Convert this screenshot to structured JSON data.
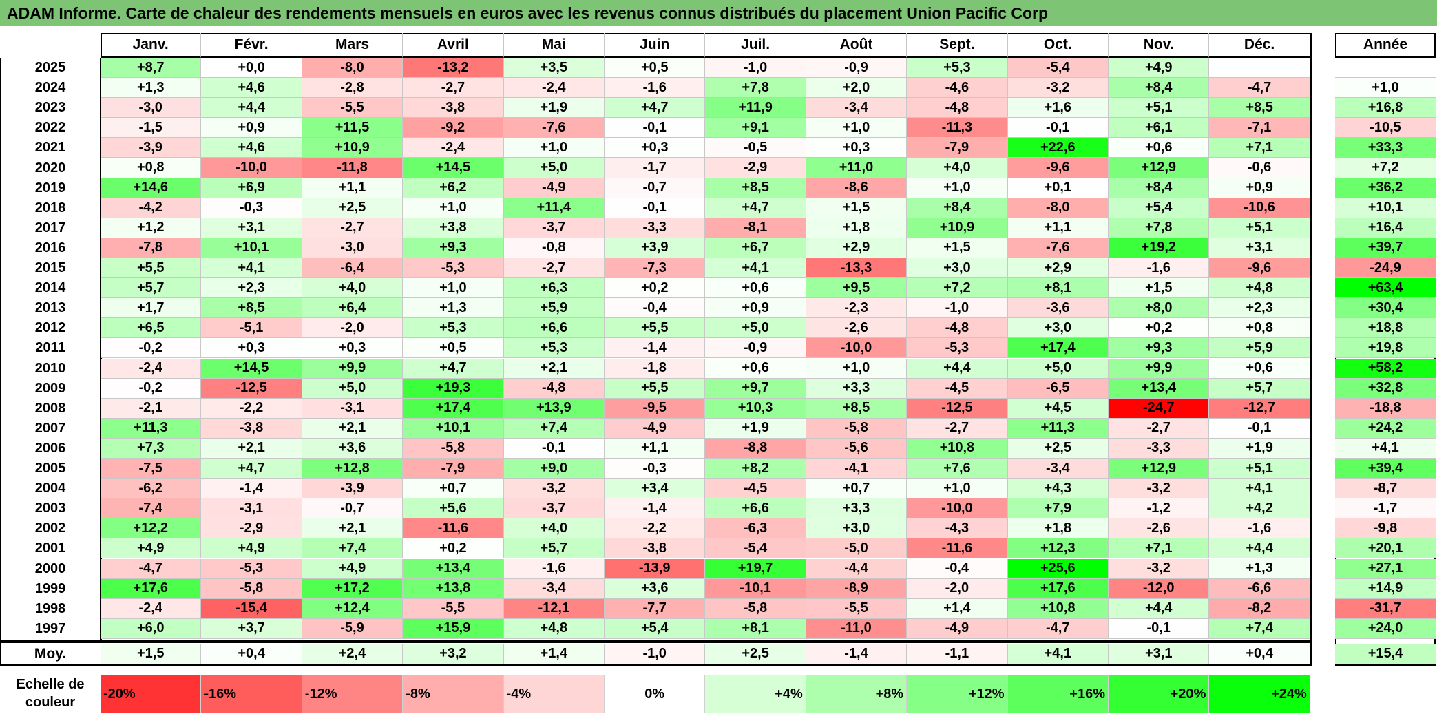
{
  "title": "ADAM Informe. Carte de chaleur des rendements mensuels en euros avec les revenus connus distribués du placement Union Pacific Corp",
  "chart_data": {
    "type": "heatmap",
    "title": "ADAM Informe. Carte de chaleur des rendements mensuels en euros avec les revenus connus distribués du placement Union Pacific Corp",
    "columns": [
      "Janv.",
      "Févr.",
      "Mars",
      "Avril",
      "Mai",
      "Juin",
      "Juil.",
      "Août",
      "Sept.",
      "Oct.",
      "Nov.",
      "Déc."
    ],
    "year_column_label": "Année",
    "rows": [
      {
        "year": "2025",
        "months": [
          "+8,7",
          "+0,0",
          "-8,0",
          "-13,2",
          "+3,5",
          "+0,5",
          "-1,0",
          "-0,9",
          "+5,3",
          "-5,4",
          "+4,9",
          ""
        ],
        "annual": ""
      },
      {
        "year": "2024",
        "months": [
          "+1,3",
          "+4,6",
          "-2,8",
          "-2,7",
          "-2,4",
          "-1,6",
          "+7,8",
          "+2,0",
          "-4,6",
          "-3,2",
          "+8,4",
          "-4,7"
        ],
        "annual": "+1,0"
      },
      {
        "year": "2023",
        "months": [
          "-3,0",
          "+4,4",
          "-5,5",
          "-3,8",
          "+1,9",
          "+4,7",
          "+11,9",
          "-3,4",
          "-4,8",
          "+1,6",
          "+5,1",
          "+8,5"
        ],
        "annual": "+16,8"
      },
      {
        "year": "2022",
        "months": [
          "-1,5",
          "+0,9",
          "+11,5",
          "-9,2",
          "-7,6",
          "-0,1",
          "+9,1",
          "+1,0",
          "-11,3",
          "-0,1",
          "+6,1",
          "-7,1"
        ],
        "annual": "-10,5"
      },
      {
        "year": "2021",
        "months": [
          "-3,9",
          "+4,6",
          "+10,9",
          "-2,4",
          "+1,0",
          "+0,3",
          "-0,5",
          "+0,3",
          "-7,9",
          "+22,6",
          "+0,6",
          "+7,1"
        ],
        "annual": "+33,3"
      },
      {
        "year": "2020",
        "months": [
          "+0,8",
          "-10,0",
          "-11,8",
          "+14,5",
          "+5,0",
          "-1,7",
          "-2,9",
          "+11,0",
          "+4,0",
          "-9,6",
          "+12,9",
          "-0,6"
        ],
        "annual": "+7,2"
      },
      {
        "year": "2019",
        "months": [
          "+14,6",
          "+6,9",
          "+1,1",
          "+6,2",
          "-4,9",
          "-0,7",
          "+8,5",
          "-8,6",
          "+1,0",
          "+0,1",
          "+8,4",
          "+0,9"
        ],
        "annual": "+36,2"
      },
      {
        "year": "2018",
        "months": [
          "-4,2",
          "-0,3",
          "+2,5",
          "+1,0",
          "+11,4",
          "-0,1",
          "+4,7",
          "+1,5",
          "+8,4",
          "-8,0",
          "+5,4",
          "-10,6"
        ],
        "annual": "+10,1"
      },
      {
        "year": "2017",
        "months": [
          "+1,2",
          "+3,1",
          "-2,7",
          "+3,8",
          "-3,7",
          "-3,3",
          "-8,1",
          "+1,8",
          "+10,9",
          "+1,1",
          "+7,8",
          "+5,1"
        ],
        "annual": "+16,4"
      },
      {
        "year": "2016",
        "months": [
          "-7,8",
          "+10,1",
          "-3,0",
          "+9,3",
          "-0,8",
          "+3,9",
          "+6,7",
          "+2,9",
          "+1,5",
          "-7,6",
          "+19,2",
          "+3,1"
        ],
        "annual": "+39,7"
      },
      {
        "year": "2015",
        "months": [
          "+5,5",
          "+4,1",
          "-6,4",
          "-5,3",
          "-2,7",
          "-7,3",
          "+4,1",
          "-13,3",
          "+3,0",
          "+2,9",
          "-1,6",
          "-9,6"
        ],
        "annual": "-24,9"
      },
      {
        "year": "2014",
        "months": [
          "+5,7",
          "+2,3",
          "+4,0",
          "+1,0",
          "+6,3",
          "+0,2",
          "+0,6",
          "+9,5",
          "+7,2",
          "+8,1",
          "+1,5",
          "+4,8"
        ],
        "annual": "+63,4"
      },
      {
        "year": "2013",
        "months": [
          "+1,7",
          "+8,5",
          "+6,4",
          "+1,3",
          "+5,9",
          "-0,4",
          "+0,9",
          "-2,3",
          "-1,0",
          "-3,6",
          "+8,0",
          "+2,3"
        ],
        "annual": "+30,4"
      },
      {
        "year": "2012",
        "months": [
          "+6,5",
          "-5,1",
          "-2,0",
          "+5,3",
          "+6,6",
          "+5,5",
          "+5,0",
          "-2,6",
          "-4,8",
          "+3,0",
          "+0,2",
          "+0,8"
        ],
        "annual": "+18,8"
      },
      {
        "year": "2011",
        "months": [
          "-0,2",
          "+0,3",
          "+0,3",
          "+0,5",
          "+5,3",
          "-1,4",
          "-0,9",
          "-10,0",
          "-5,3",
          "+17,4",
          "+9,3",
          "+5,9"
        ],
        "annual": "+19,8"
      },
      {
        "year": "2010",
        "months": [
          "-2,4",
          "+14,5",
          "+9,9",
          "+4,7",
          "+2,1",
          "-1,8",
          "+0,6",
          "+1,0",
          "+4,4",
          "+5,0",
          "+9,9",
          "+0,6"
        ],
        "annual": "+58,2"
      },
      {
        "year": "2009",
        "months": [
          "-0,2",
          "-12,5",
          "+5,0",
          "+19,3",
          "-4,8",
          "+5,5",
          "+9,7",
          "+3,3",
          "-4,5",
          "-6,5",
          "+13,4",
          "+5,7"
        ],
        "annual": "+32,8"
      },
      {
        "year": "2008",
        "months": [
          "-2,1",
          "-2,2",
          "-3,1",
          "+17,4",
          "+13,9",
          "-9,5",
          "+10,3",
          "+8,5",
          "-12,5",
          "+4,5",
          "-24,7",
          "-12,7"
        ],
        "annual": "-18,8"
      },
      {
        "year": "2007",
        "months": [
          "+11,3",
          "-3,8",
          "+2,1",
          "+10,1",
          "+7,4",
          "-4,9",
          "+1,9",
          "-5,8",
          "-2,7",
          "+11,3",
          "-2,7",
          "-0,1"
        ],
        "annual": "+24,2"
      },
      {
        "year": "2006",
        "months": [
          "+7,3",
          "+2,1",
          "+3,6",
          "-5,8",
          "-0,1",
          "+1,1",
          "-8,8",
          "-5,6",
          "+10,8",
          "+2,5",
          "-3,3",
          "+1,9"
        ],
        "annual": "+4,1"
      },
      {
        "year": "2005",
        "months": [
          "-7,5",
          "+4,7",
          "+12,8",
          "-7,9",
          "+9,0",
          "-0,3",
          "+8,2",
          "-4,1",
          "+7,6",
          "-3,4",
          "+12,9",
          "+5,1"
        ],
        "annual": "+39,4"
      },
      {
        "year": "2004",
        "months": [
          "-6,2",
          "-1,4",
          "-3,9",
          "+0,7",
          "-3,2",
          "+3,4",
          "-4,5",
          "+0,7",
          "+1,0",
          "+4,3",
          "-3,2",
          "+4,1"
        ],
        "annual": "-8,7"
      },
      {
        "year": "2003",
        "months": [
          "-7,4",
          "-3,1",
          "-0,7",
          "+5,6",
          "-3,7",
          "-1,4",
          "+6,6",
          "+3,3",
          "-10,0",
          "+7,9",
          "-1,2",
          "+4,2"
        ],
        "annual": "-1,7"
      },
      {
        "year": "2002",
        "months": [
          "+12,2",
          "-2,9",
          "+2,1",
          "-11,6",
          "+4,0",
          "-2,2",
          "-6,3",
          "+3,0",
          "-4,3",
          "+1,8",
          "-2,6",
          "-1,6"
        ],
        "annual": "-9,8"
      },
      {
        "year": "2001",
        "months": [
          "+4,9",
          "+4,9",
          "+7,4",
          "+0,2",
          "+5,7",
          "-3,8",
          "-5,4",
          "-5,0",
          "-11,6",
          "+12,3",
          "+7,1",
          "+4,4"
        ],
        "annual": "+20,1"
      },
      {
        "year": "2000",
        "months": [
          "-4,7",
          "-5,3",
          "+4,9",
          "+13,4",
          "-1,6",
          "-13,9",
          "+19,7",
          "-4,4",
          "-0,4",
          "+25,6",
          "-3,2",
          "+1,3"
        ],
        "annual": "+27,1"
      },
      {
        "year": "1999",
        "months": [
          "+17,6",
          "-5,8",
          "+17,2",
          "+13,8",
          "-3,4",
          "+3,6",
          "-10,1",
          "-8,9",
          "-2,0",
          "+17,6",
          "-12,0",
          "-6,6"
        ],
        "annual": "+14,9"
      },
      {
        "year": "1998",
        "months": [
          "-2,4",
          "-15,4",
          "+12,4",
          "-5,5",
          "-12,1",
          "-7,7",
          "-5,8",
          "-5,5",
          "+1,4",
          "+10,8",
          "+4,4",
          "-8,2"
        ],
        "annual": "-31,7"
      },
      {
        "year": "1997",
        "months": [
          "+6,0",
          "+3,7",
          "-5,9",
          "+15,9",
          "+4,8",
          "+5,4",
          "+8,1",
          "-11,0",
          "-4,9",
          "-4,7",
          "-0,1",
          "+7,4"
        ],
        "annual": "+24,0"
      }
    ],
    "average": {
      "label": "Moy.",
      "months": [
        "+1,5",
        "+0,4",
        "+2,4",
        "+3,2",
        "+1,4",
        "-1,0",
        "+2,5",
        "-1,4",
        "-1,1",
        "+4,1",
        "+3,1",
        "+0,4"
      ],
      "annual": "+15,4"
    },
    "color_scale": {
      "label": "Echelle de couleur",
      "steps": [
        "-20%",
        "-16%",
        "-12%",
        "-8%",
        "-4%",
        "0%",
        "+4%",
        "+8%",
        "+12%",
        "+16%",
        "+20%",
        "+24%"
      ],
      "negative_color": "#ff0000",
      "neutral_color": "#ffffff",
      "positive_color": "#00ff00"
    }
  }
}
